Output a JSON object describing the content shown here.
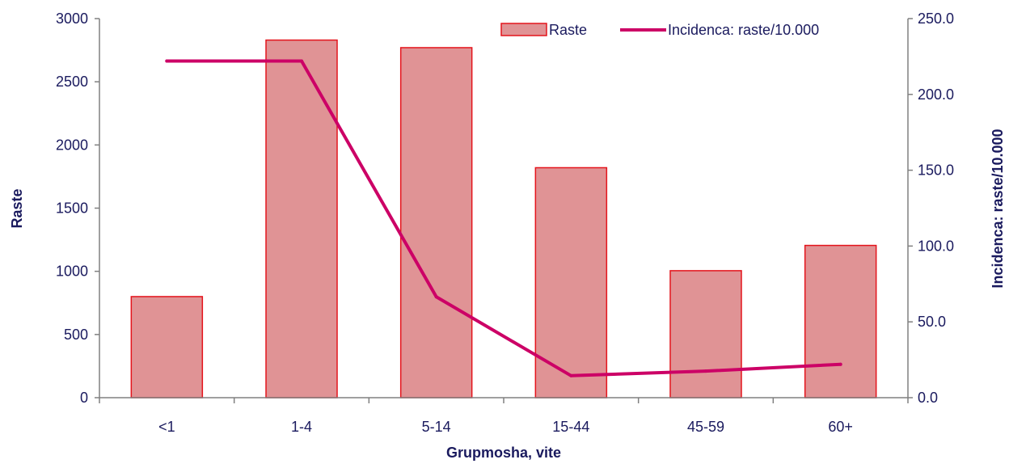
{
  "chart_data": {
    "type": "bar",
    "categories": [
      "<1",
      "1-4",
      "5-14",
      "15-44",
      "45-59",
      "60+"
    ],
    "series": [
      {
        "name": "Raste",
        "type": "bar",
        "axis": "left",
        "values": [
          800,
          2830,
          2770,
          1820,
          1005,
          1205
        ]
      },
      {
        "name": "Incidenca: raste/10.000",
        "type": "line",
        "axis": "right",
        "values": [
          222.0,
          222.0,
          66.5,
          14.5,
          17.5,
          22.0
        ]
      }
    ],
    "xlabel": "Grupmosha, vite",
    "ylabel": "Raste",
    "y2label": "Incidenca: raste/10.000",
    "ylim": [
      0,
      3000
    ],
    "y2lim": [
      0,
      250
    ],
    "yticks": [
      "0",
      "500",
      "1000",
      "1500",
      "2000",
      "2500",
      "3000"
    ],
    "y2ticks": [
      "0.0",
      "50.0",
      "100.0",
      "150.0",
      "200.0",
      "250.0"
    ],
    "legend_position": "top-right",
    "grid": false,
    "colors": {
      "bar_fill": "#e09395",
      "bar_stroke": "#e4141c",
      "line": "#cc0066",
      "text": "#1a1a5e",
      "axis": "#808080"
    }
  }
}
